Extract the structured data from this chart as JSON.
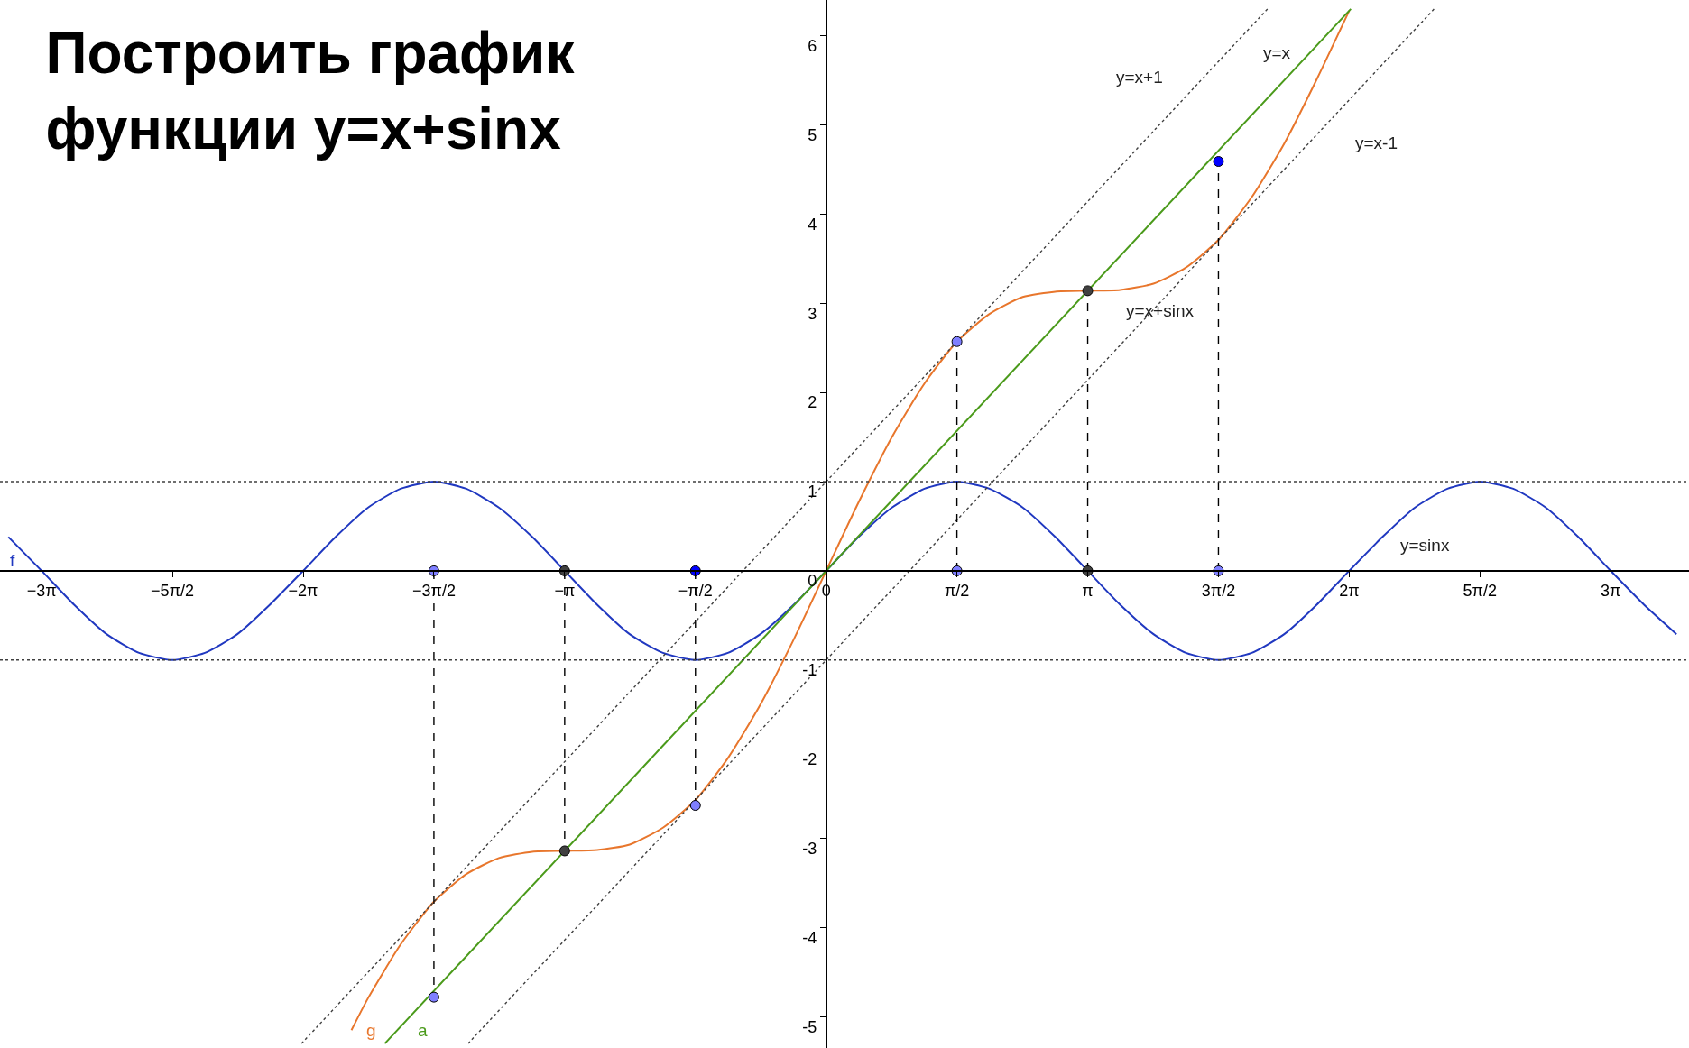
{
  "chart_data": {
    "type": "line",
    "title": "Построить график\nфункции y=x+sinx",
    "xlim": [
      -9.92,
      10.36
    ],
    "ylim": [
      -5.35,
      6.4
    ],
    "xticks": [
      {
        "value": -9.42,
        "label": "−3π"
      },
      {
        "value": -7.85,
        "label": "−5π/2"
      },
      {
        "value": -6.28,
        "label": "−2π"
      },
      {
        "value": -4.71,
        "label": "−3π/2"
      },
      {
        "value": -3.14,
        "label": "−π"
      },
      {
        "value": -1.57,
        "label": "−π/2"
      },
      {
        "value": 0,
        "label": "0"
      },
      {
        "value": 1.57,
        "label": "π/2"
      },
      {
        "value": 3.14,
        "label": "π"
      },
      {
        "value": 4.71,
        "label": "3π/2"
      },
      {
        "value": 6.28,
        "label": "2π"
      },
      {
        "value": 7.85,
        "label": "5π/2"
      },
      {
        "value": 9.42,
        "label": "3π"
      }
    ],
    "yticks": [
      -5,
      -4,
      -3,
      -2,
      -1,
      0,
      1,
      2,
      3,
      4,
      5,
      6
    ],
    "ref_lines": [
      {
        "axis": "y",
        "value": 1,
        "color": "#404040",
        "line_style": "dotted"
      },
      {
        "axis": "y",
        "value": -1,
        "color": "#404040",
        "line_style": "dotted"
      }
    ],
    "series": [
      {
        "color": "#2038c0",
        "line_style": "solid",
        "x": [
          -9.82,
          -9.42,
          -9.03,
          -8.64,
          -8.25,
          -7.85,
          -7.46,
          -7.07,
          -6.68,
          -6.28,
          -5.89,
          -5.5,
          -5.11,
          -4.71,
          -4.32,
          -3.93,
          -3.53,
          -3.14,
          -2.75,
          -2.36,
          -1.96,
          -1.57,
          -1.18,
          -0.79,
          -0.39,
          0,
          0.39,
          0.79,
          1.18,
          1.57,
          1.96,
          2.36,
          2.75,
          3.14,
          3.53,
          3.93,
          4.32,
          4.71,
          5.11,
          5.5,
          5.89,
          6.28,
          6.68,
          7.07,
          7.46,
          7.85,
          8.25,
          8.64,
          9.03,
          9.42,
          9.82,
          10.21
        ],
        "values": [
          0.38,
          0,
          -0.38,
          -0.71,
          -0.92,
          -1,
          -0.92,
          -0.71,
          -0.38,
          0,
          0.38,
          0.71,
          0.92,
          1,
          0.92,
          0.71,
          0.38,
          0,
          -0.38,
          -0.71,
          -0.92,
          -1,
          -0.92,
          -0.71,
          -0.38,
          0,
          0.38,
          0.71,
          0.92,
          1,
          0.92,
          0.71,
          0.38,
          0,
          -0.38,
          -0.71,
          -0.92,
          -1,
          -0.92,
          -0.71,
          -0.38,
          0,
          0.38,
          0.71,
          0.92,
          1,
          0.92,
          0.71,
          0.38,
          0,
          -0.38,
          -0.71
        ]
      },
      {
        "color": "#e8762c",
        "line_style": "solid",
        "x": [
          -5.7,
          -5.5,
          -5.11,
          -4.71,
          -4.32,
          -3.93,
          -3.53,
          -3.14,
          -2.75,
          -2.36,
          -1.96,
          -1.57,
          -1.18,
          -0.79,
          -0.39,
          0,
          0.39,
          0.79,
          1.18,
          1.57,
          1.96,
          2.36,
          2.75,
          3.14,
          3.53,
          3.93,
          4.32,
          4.71,
          5.11,
          5.5,
          5.89,
          6.28
        ],
        "values": [
          -5.15,
          -4.79,
          -4.19,
          -3.71,
          -3.4,
          -3.22,
          -3.15,
          -3.14,
          -3.13,
          -3.07,
          -2.88,
          -2.57,
          -2.1,
          -1.5,
          -0.77,
          0,
          0.77,
          1.5,
          2.1,
          2.57,
          2.88,
          3.07,
          3.13,
          3.14,
          3.15,
          3.22,
          3.4,
          3.71,
          4.19,
          4.79,
          5.51,
          6.28
        ]
      },
      {
        "color": "#4a9a1a",
        "line_style": "solid",
        "x": [
          -5.3,
          6.3
        ],
        "values": [
          -5.3,
          6.3
        ]
      },
      {
        "color": "#404040",
        "line_style": "dotted",
        "x": [
          -6.3,
          5.3
        ],
        "values": [
          -5.3,
          6.3
        ]
      },
      {
        "color": "#404040",
        "line_style": "dotted",
        "x": [
          -4.3,
          7.3
        ],
        "values": [
          -5.3,
          6.3
        ]
      },
      {
        "color": "#000000",
        "line_style": "dashed",
        "x": [
          -4.71,
          -4.71
        ],
        "values": [
          0,
          -4.78
        ]
      },
      {
        "color": "#000000",
        "line_style": "dashed",
        "x": [
          -3.14,
          -3.14
        ],
        "values": [
          0,
          -3.14
        ]
      },
      {
        "color": "#000000",
        "line_style": "dashed",
        "x": [
          -1.57,
          -1.57
        ],
        "values": [
          0,
          -2.63
        ]
      },
      {
        "color": "#000000",
        "line_style": "dashed",
        "x": [
          1.57,
          1.57
        ],
        "values": [
          0,
          2.57
        ]
      },
      {
        "color": "#000000",
        "line_style": "dashed",
        "x": [
          3.14,
          3.14
        ],
        "values": [
          0,
          3.14
        ]
      },
      {
        "color": "#000000",
        "line_style": "dashed",
        "x": [
          4.71,
          4.71
        ],
        "values": [
          0,
          4.59
        ]
      },
      {
        "type": "scatter",
        "x": [
          -4.71,
          -3.14,
          -1.57,
          1.57,
          3.14,
          4.71,
          -4.71,
          -3.14,
          -1.57,
          1.57,
          3.14,
          4.71
        ],
        "values": [
          0,
          0,
          0,
          0,
          0,
          0,
          -4.78,
          -3.14,
          -2.63,
          2.57,
          3.14,
          4.59
        ],
        "colors": [
          "#7f7fff",
          "#404040",
          "#0000ff",
          "#7f7fff",
          "#404040",
          "#7f7fff",
          "#7f7fff",
          "#404040",
          "#7f7fff",
          "#7f7fff",
          "#404040",
          "#0000ff"
        ]
      }
    ],
    "annotations": [
      "f",
      "g",
      "a",
      "y=x+1",
      "y=x",
      "y=x-1",
      "y=x+sinx",
      "y=sinx"
    ]
  }
}
